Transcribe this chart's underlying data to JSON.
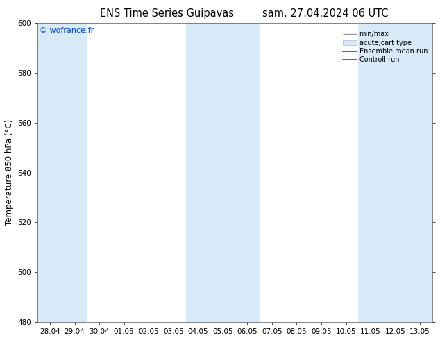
{
  "title_left": "ENS Time Series Guipavas",
  "title_right": "sam. 27.04.2024 06 UTC",
  "ylabel": "Temperature 850 hPa (°C)",
  "watermark": "© wofrance.fr",
  "ylim": [
    480,
    600
  ],
  "yticks": [
    480,
    500,
    520,
    540,
    560,
    580,
    600
  ],
  "x_labels": [
    "28.04",
    "29.04",
    "30.04",
    "01.05",
    "02.05",
    "03.05",
    "04.05",
    "05.05",
    "06.05",
    "07.05",
    "08.05",
    "09.05",
    "10.05",
    "11.05",
    "12.05",
    "13.05"
  ],
  "x_values": [
    0,
    1,
    2,
    3,
    4,
    5,
    6,
    7,
    8,
    9,
    10,
    11,
    12,
    13,
    14,
    15
  ],
  "shaded_bands": [
    0,
    1,
    6,
    7,
    8,
    13,
    14,
    15
  ],
  "band_color": "#d8eaf7",
  "bg_color": "#ffffff",
  "legend_items": [
    {
      "label": "min/max",
      "color": "#aaaaaa",
      "style": "hline"
    },
    {
      "label": "acute;cart type",
      "color": "#d8eaf7",
      "style": "rect"
    },
    {
      "label": "Ensemble mean run",
      "color": "red",
      "style": "line"
    },
    {
      "label": "Controll run",
      "color": "green",
      "style": "line"
    }
  ],
  "grid_color": "#dddddd",
  "tick_label_fontsize": 7.5,
  "title_fontsize": 10.5,
  "ylabel_fontsize": 8.5,
  "watermark_color": "#0044cc",
  "watermark_fontsize": 8
}
